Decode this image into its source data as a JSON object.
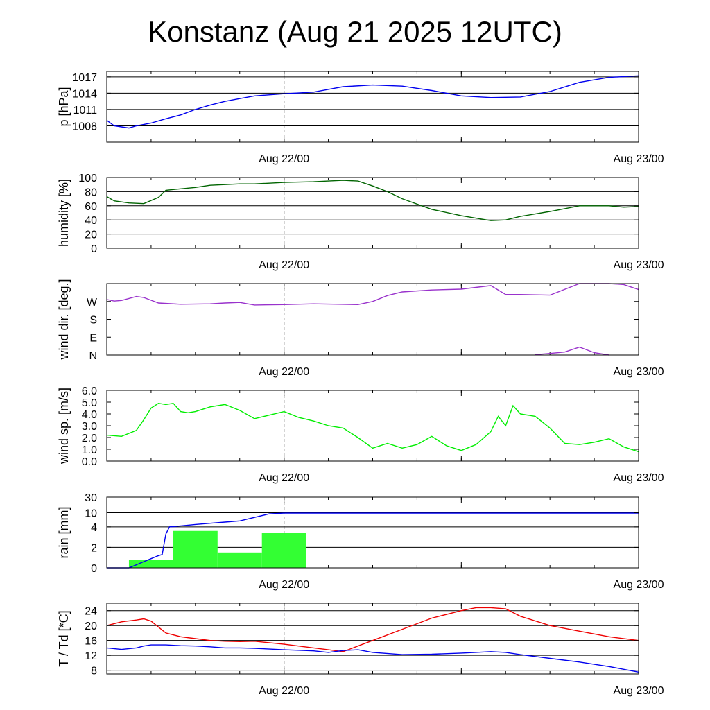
{
  "title": "Konstanz (Aug 21 2025 12UTC)",
  "x_tick_labels": [
    "Aug 22/00",
    "Aug 23/00"
  ],
  "chart_data": [
    {
      "type": "line",
      "ylabel": "p [hPa]",
      "ylim": [
        1005.0,
        1018.0
      ],
      "y_ticks": [
        1008,
        1011,
        1014,
        1017
      ],
      "y_tick_labels": [
        "1008",
        "1011",
        "1014",
        "1017"
      ],
      "grid": "horizontal",
      "x_hours": [
        0,
        1,
        2,
        3,
        4,
        6,
        8,
        10,
        12,
        14,
        16,
        18,
        20,
        24,
        28,
        32,
        36,
        40,
        44,
        48,
        52,
        56,
        60,
        64,
        68,
        72
      ],
      "series": [
        {
          "color": "#0000ee",
          "values": [
            1009.0,
            1008.0,
            1007.8,
            1007.6,
            1008.0,
            1008.5,
            1009.3,
            1010.0,
            1011.0,
            1011.8,
            1012.5,
            1013.0,
            1013.5,
            1013.9,
            1014.2,
            1015.2,
            1015.5,
            1015.3,
            1014.5,
            1013.5,
            1013.2,
            1013.3,
            1014.3,
            1016.0,
            1016.9,
            1017.2
          ]
        }
      ]
    },
    {
      "type": "line",
      "ylabel": "humidity [%]",
      "ylim": [
        0,
        100
      ],
      "y_ticks": [
        0,
        20,
        40,
        60,
        80,
        100
      ],
      "y_tick_labels": [
        "0",
        "20",
        "40",
        "60",
        "80",
        "100"
      ],
      "grid": "horizontal",
      "x_hours": [
        0,
        1,
        3,
        5,
        7,
        8,
        10,
        12,
        14,
        16,
        18,
        20,
        24,
        28,
        32,
        34,
        36,
        38,
        40,
        44,
        48,
        52,
        54,
        56,
        60,
        64,
        68,
        70,
        72
      ],
      "series": [
        {
          "color": "#006400",
          "values": [
            73,
            67,
            64,
            63,
            72,
            82,
            84,
            86,
            89,
            90,
            91,
            91,
            93,
            94,
            96,
            95,
            88,
            80,
            70,
            55,
            46,
            39,
            40,
            45,
            52,
            60,
            60,
            58,
            59
          ]
        }
      ]
    },
    {
      "type": "line",
      "ylabel": "wind dir. [deg.]",
      "ylim": [
        0,
        360
      ],
      "y_ticks": [
        0,
        90,
        180,
        270
      ],
      "y_tick_labels": [
        "N",
        "E",
        "S",
        "W"
      ],
      "grid": "none",
      "x_hours": [
        0,
        1,
        2,
        4,
        5,
        7,
        10,
        14,
        16,
        18,
        20,
        24,
        28,
        34,
        36,
        38,
        40,
        44,
        48,
        52,
        54,
        56,
        60,
        64,
        68,
        70,
        72
      ],
      "series": [
        {
          "color": "#9932cc",
          "values": [
            280,
            272,
            275,
            295,
            290,
            262,
            256,
            258,
            262,
            265,
            252,
            254,
            258,
            254,
            270,
            300,
            318,
            328,
            332,
            350,
            305,
            305,
            302,
            360,
            360,
            355,
            330
          ]
        },
        {
          "color": "#9932cc",
          "values": []
        }
      ],
      "wrapped_segment": {
        "x_hours": [
          58,
          60,
          62,
          64,
          66,
          68
        ],
        "values": [
          2,
          8,
          15,
          40,
          12,
          0
        ]
      }
    },
    {
      "type": "line",
      "ylabel": "wind sp. [m/s]",
      "ylim": [
        0.0,
        6.0
      ],
      "y_ticks": [
        0.0,
        1.0,
        2.0,
        3.0,
        4.0,
        5.0,
        6.0
      ],
      "y_tick_labels": [
        "0.0",
        "1.0",
        "2.0",
        "3.0",
        "4.0",
        "5.0",
        "6.0"
      ],
      "grid": "none",
      "x_hours": [
        0,
        2,
        4,
        5,
        6,
        7,
        8,
        9,
        10,
        11,
        12,
        14,
        16,
        18,
        20,
        22,
        24,
        26,
        28,
        30,
        32,
        34,
        36,
        38,
        40,
        42,
        44,
        46,
        48,
        50,
        52,
        53,
        54,
        55,
        56,
        58,
        60,
        62,
        64,
        66,
        68,
        70,
        72
      ],
      "series": [
        {
          "color": "#00ee00",
          "values": [
            2.2,
            2.1,
            2.6,
            3.5,
            4.5,
            4.9,
            4.8,
            4.9,
            4.2,
            4.1,
            4.2,
            4.6,
            4.8,
            4.3,
            3.6,
            3.9,
            4.2,
            3.7,
            3.4,
            3.0,
            2.8,
            2.0,
            1.1,
            1.5,
            1.1,
            1.4,
            2.1,
            1.3,
            0.9,
            1.4,
            2.5,
            3.8,
            3.0,
            4.7,
            4.0,
            3.8,
            2.8,
            1.5,
            1.4,
            1.6,
            1.9,
            1.2,
            0.8
          ]
        }
      ]
    },
    {
      "type": "bar",
      "ylabel": "rain [mm]",
      "ylim": [
        0,
        30
      ],
      "y_ticks": [
        0,
        2,
        4,
        10,
        30
      ],
      "y_tick_labels": [
        "0",
        "2",
        "4",
        "10",
        "30"
      ],
      "grid": "horizontal",
      "bars": [
        {
          "start_hour": 3,
          "end_hour": 9,
          "value": 0.8,
          "color": "#33ff33"
        },
        {
          "start_hour": 9,
          "end_hour": 15,
          "value": 3.6,
          "color": "#33ff33"
        },
        {
          "start_hour": 15,
          "end_hour": 21,
          "value": 1.5,
          "color": "#33ff33"
        },
        {
          "start_hour": 21,
          "end_hour": 27,
          "value": 3.4,
          "color": "#33ff33"
        }
      ],
      "x_hours": [
        0,
        3,
        4,
        5,
        6,
        7,
        7.5,
        8,
        8.5,
        9,
        12,
        14,
        16,
        18,
        20,
        22,
        24,
        30,
        72
      ],
      "series": [
        {
          "color": "#0000ee",
          "values": [
            0,
            0,
            0.3,
            0.6,
            0.9,
            1.2,
            1.3,
            3.3,
            4.0,
            4.1,
            5.0,
            5.5,
            6.0,
            6.5,
            8.0,
            9.5,
            9.8,
            9.8,
            9.8
          ]
        }
      ]
    },
    {
      "type": "line",
      "ylabel": "T / Td [*C]",
      "ylim": [
        7,
        26
      ],
      "y_ticks": [
        8,
        12,
        16,
        20,
        24
      ],
      "y_tick_labels": [
        "8",
        "12",
        "16",
        "20",
        "24"
      ],
      "grid": "horizontal",
      "x_hours": [
        0,
        2,
        4,
        5,
        6,
        8,
        10,
        12,
        14,
        16,
        18,
        20,
        24,
        28,
        30,
        32,
        34,
        36,
        40,
        44,
        48,
        50,
        52,
        54,
        56,
        60,
        64,
        68,
        72
      ],
      "series": [
        {
          "color": "#ee0000",
          "values": [
            20.0,
            21.0,
            21.5,
            21.8,
            21.2,
            18.0,
            17.0,
            16.5,
            16.0,
            15.8,
            15.7,
            15.8,
            15.0,
            14.0,
            13.5,
            13.0,
            14.5,
            16.0,
            19.0,
            22.0,
            24.0,
            24.8,
            24.8,
            24.5,
            22.5,
            20.0,
            18.5,
            17.0,
            16.0
          ]
        },
        {
          "color": "#0000ee",
          "values": [
            14.0,
            13.6,
            14.0,
            14.5,
            14.8,
            14.8,
            14.6,
            14.5,
            14.3,
            14.0,
            14.0,
            13.9,
            13.5,
            13.2,
            12.8,
            13.3,
            13.5,
            12.8,
            12.2,
            12.3,
            12.6,
            12.8,
            13.0,
            12.8,
            12.2,
            11.2,
            10.2,
            9.0,
            7.5
          ]
        }
      ]
    }
  ]
}
